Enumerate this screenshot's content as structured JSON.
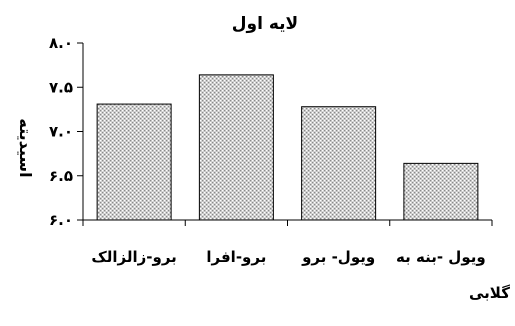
{
  "chart_data": {
    "type": "bar",
    "title": "لایه اول",
    "xlabel": "همراه گلابی",
    "ylabel": "اسیدیته",
    "categories": [
      "برو-زالزالک",
      "برو-افرا",
      "ویول- برو",
      "ویول -بنه به"
    ],
    "values": [
      7.31,
      7.64,
      7.28,
      6.64
    ],
    "ylim": [
      6.0,
      8.0
    ],
    "yticks": [
      6.0,
      6.5,
      7.0,
      7.5,
      8.0
    ],
    "ytick_labels": [
      "۶.۰",
      "۶.۵",
      "۷.۰",
      "۷.۵",
      "۸.۰"
    ],
    "grid": false,
    "legend": "none",
    "bar_fill": "#cfcfcf",
    "bar_pattern_dot": "#ffffff",
    "bar_outline": "#000000"
  }
}
